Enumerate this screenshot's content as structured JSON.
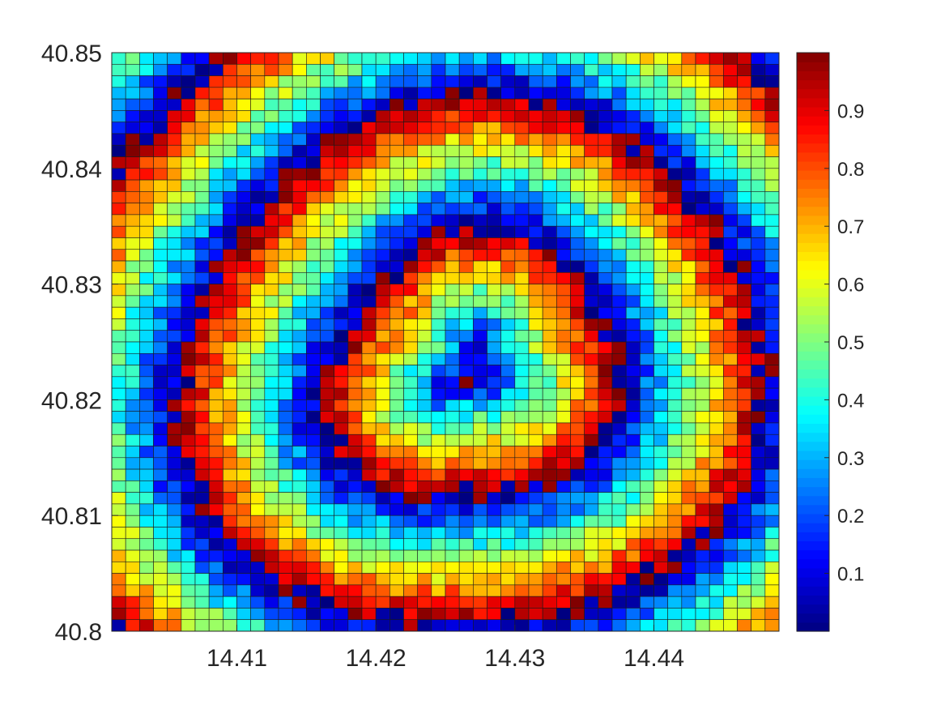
{
  "chart_data": {
    "type": "heatmap",
    "title": "",
    "xlabel": "",
    "ylabel": "",
    "xlim": [
      14.401,
      14.449
    ],
    "ylim": [
      40.8,
      40.85
    ],
    "x_ticks": [
      14.41,
      14.42,
      14.43,
      14.44
    ],
    "x_tick_labels": [
      "14.41",
      "14.42",
      "14.43",
      "14.44"
    ],
    "y_ticks": [
      40.8,
      40.81,
      40.82,
      40.83,
      40.84,
      40.85
    ],
    "y_tick_labels": [
      "40.8",
      "40.81",
      "40.82",
      "40.83",
      "40.84",
      "40.85"
    ],
    "grid_cols": 48,
    "grid_rows": 50,
    "colormap": "jet",
    "colorbar": {
      "range": [
        0,
        1
      ],
      "ticks": [
        0.1,
        0.2,
        0.3,
        0.4,
        0.5,
        0.6,
        0.7,
        0.8,
        0.9
      ],
      "tick_labels": [
        "0.1",
        "0.2",
        "0.3",
        "0.4",
        "0.5",
        "0.6",
        "0.7",
        "0.8",
        "0.9"
      ],
      "placement": "right"
    },
    "pattern": {
      "description_values_only": true,
      "center": [
        14.427,
        40.8225
      ],
      "phase_period_x": 0.0105,
      "phase_period_y": 0.0113
    },
    "cell_edge_color": "#1a1a1a"
  }
}
